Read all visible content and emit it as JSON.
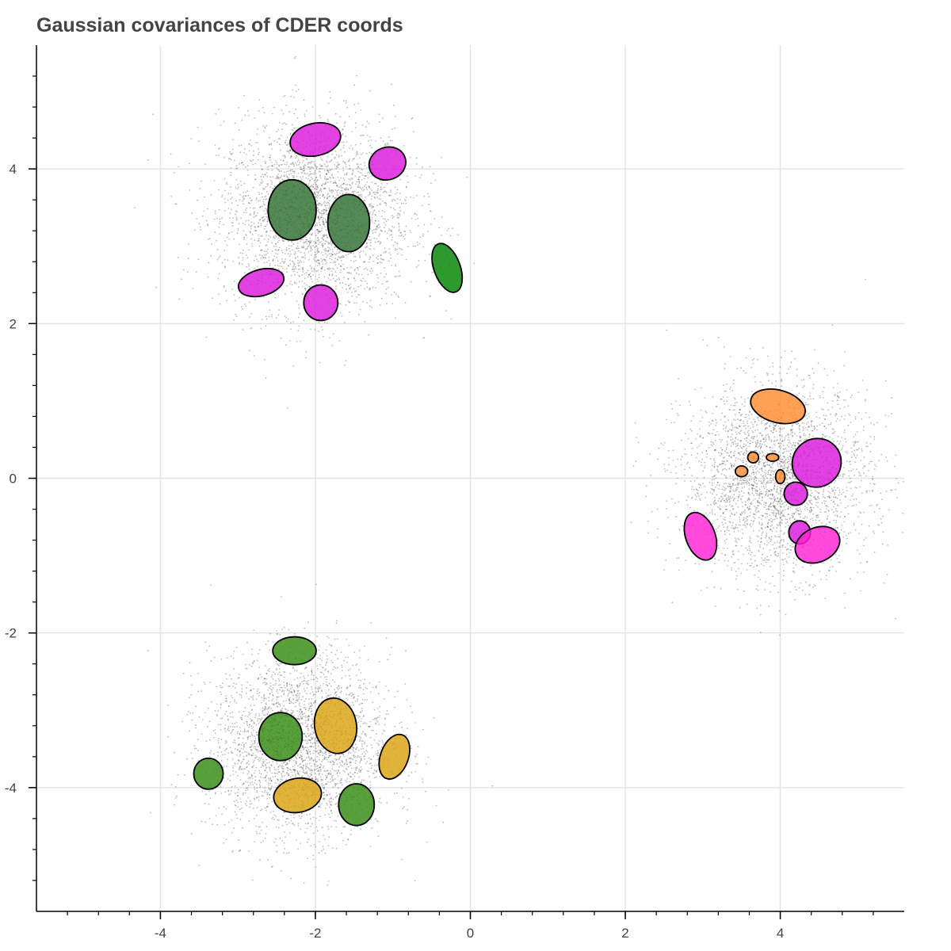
{
  "chart_data": {
    "type": "scatter",
    "title": "Gaussian covariances of CDER coords",
    "xlabel": "",
    "ylabel": "",
    "xlim": [
      -5.6,
      5.6
    ],
    "ylim": [
      -5.6,
      5.6
    ],
    "grid": true,
    "x_ticks": [
      {
        "value": -4,
        "label": "-4"
      },
      {
        "value": -2,
        "label": "-2"
      },
      {
        "value": 0,
        "label": "0"
      },
      {
        "value": 2,
        "label": "2"
      },
      {
        "value": 4,
        "label": "4"
      }
    ],
    "y_ticks": [
      {
        "value": -4,
        "label": "-4"
      },
      {
        "value": -2,
        "label": "-2"
      },
      {
        "value": 0,
        "label": "0"
      },
      {
        "value": 2,
        "label": "2"
      },
      {
        "value": 4,
        "label": "4"
      }
    ],
    "point_clusters": [
      {
        "name": "upper-left",
        "center": [
          -2.0,
          3.4
        ],
        "std": 0.62,
        "count": 3000
      },
      {
        "name": "right",
        "center": [
          3.95,
          0.0
        ],
        "std": 0.6,
        "count": 3000
      },
      {
        "name": "lower-left",
        "center": [
          -2.2,
          -3.45
        ],
        "std": 0.58,
        "count": 3000
      }
    ],
    "ellipses": [
      {
        "cx": -2.0,
        "cy": 4.38,
        "rx": 0.33,
        "ry": 0.21,
        "angle": -12,
        "color": "#dd19dd"
      },
      {
        "cx": -1.07,
        "cy": 4.07,
        "rx": 0.24,
        "ry": 0.21,
        "angle": -20,
        "color": "#dd19dd"
      },
      {
        "cx": -2.3,
        "cy": 3.47,
        "rx": 0.31,
        "ry": 0.39,
        "angle": 0,
        "color": "#2f6f2f"
      },
      {
        "cx": -1.57,
        "cy": 3.3,
        "rx": 0.27,
        "ry": 0.37,
        "angle": 0,
        "color": "#2f6f2f"
      },
      {
        "cx": -0.3,
        "cy": 2.72,
        "rx": 0.17,
        "ry": 0.33,
        "angle": -20,
        "color": "#008200"
      },
      {
        "cx": -2.7,
        "cy": 2.53,
        "rx": 0.3,
        "ry": 0.17,
        "angle": -15,
        "color": "#dd19dd"
      },
      {
        "cx": -1.93,
        "cy": 2.27,
        "rx": 0.22,
        "ry": 0.23,
        "angle": 0,
        "color": "#dd19dd"
      },
      {
        "cx": 3.97,
        "cy": 0.93,
        "rx": 0.36,
        "ry": 0.21,
        "angle": 15,
        "color": "#ff8c32"
      },
      {
        "cx": 4.47,
        "cy": 0.2,
        "rx": 0.32,
        "ry": 0.31,
        "angle": -40,
        "color": "#dd19dd"
      },
      {
        "cx": 3.65,
        "cy": 0.27,
        "rx": 0.07,
        "ry": 0.07,
        "angle": 0,
        "color": "#ff8c32"
      },
      {
        "cx": 3.9,
        "cy": 0.27,
        "rx": 0.08,
        "ry": 0.05,
        "angle": 0,
        "color": "#ff8c32"
      },
      {
        "cx": 3.5,
        "cy": 0.09,
        "rx": 0.08,
        "ry": 0.07,
        "angle": 0,
        "color": "#ff8c32"
      },
      {
        "cx": 4.0,
        "cy": 0.02,
        "rx": 0.06,
        "ry": 0.09,
        "angle": 0,
        "color": "#ff8c32"
      },
      {
        "cx": 4.2,
        "cy": -0.2,
        "rx": 0.15,
        "ry": 0.15,
        "angle": 0,
        "color": "#dd19dd"
      },
      {
        "cx": 2.97,
        "cy": -0.75,
        "rx": 0.19,
        "ry": 0.32,
        "angle": -20,
        "color": "#ff22d6"
      },
      {
        "cx": 4.25,
        "cy": -0.7,
        "rx": 0.14,
        "ry": 0.15,
        "angle": 0,
        "color": "#dd19dd"
      },
      {
        "cx": 4.48,
        "cy": -0.86,
        "rx": 0.3,
        "ry": 0.22,
        "angle": -25,
        "color": "#ff22d6"
      },
      {
        "cx": -2.27,
        "cy": -2.23,
        "rx": 0.28,
        "ry": 0.18,
        "angle": 0,
        "color": "#358a10"
      },
      {
        "cx": -1.74,
        "cy": -3.2,
        "rx": 0.27,
        "ry": 0.36,
        "angle": -10,
        "color": "#d9a20f"
      },
      {
        "cx": -2.45,
        "cy": -3.34,
        "rx": 0.28,
        "ry": 0.31,
        "angle": 0,
        "color": "#358a10"
      },
      {
        "cx": -0.98,
        "cy": -3.6,
        "rx": 0.18,
        "ry": 0.3,
        "angle": 20,
        "color": "#d9a20f"
      },
      {
        "cx": -3.38,
        "cy": -3.82,
        "rx": 0.19,
        "ry": 0.2,
        "angle": 0,
        "color": "#358a10"
      },
      {
        "cx": -2.23,
        "cy": -4.1,
        "rx": 0.31,
        "ry": 0.22,
        "angle": -10,
        "color": "#d9a20f"
      },
      {
        "cx": -1.47,
        "cy": -4.22,
        "rx": 0.23,
        "ry": 0.27,
        "angle": 0,
        "color": "#358a10"
      }
    ]
  }
}
